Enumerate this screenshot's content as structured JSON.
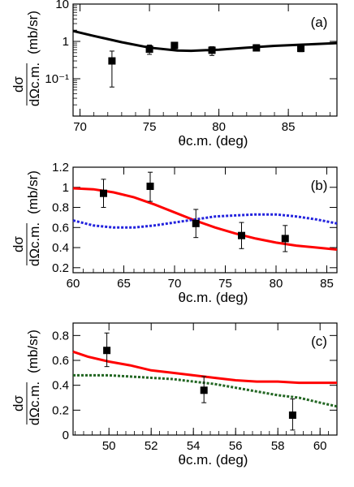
{
  "chart_data": [
    {
      "type": "scatter",
      "panel_label": "(a)",
      "xlabel": "θc.m. (deg)",
      "ylabel_top": "dσ",
      "ylabel_bottom": "dΩc.m.",
      "ylabel_unit": "(mb/sr)",
      "x_ticks": [
        "70",
        "75",
        "80",
        "85"
      ],
      "y_ticks": [
        "10",
        "1",
        "10⁻¹"
      ],
      "xlim": [
        69.5,
        88.5
      ],
      "ylim": [
        0.01,
        10
      ],
      "y_scale": "log",
      "grid": false,
      "points": [
        {
          "x": 72.3,
          "y": 0.3,
          "err_lo": 0.06,
          "err_hi": 0.55
        },
        {
          "x": 75.0,
          "y": 0.62,
          "err_lo": 0.45,
          "err_hi": 0.8
        },
        {
          "x": 76.8,
          "y": 0.78,
          "err_lo": 0.66,
          "err_hi": 0.92
        },
        {
          "x": 79.5,
          "y": 0.58,
          "err_lo": 0.42,
          "err_hi": 0.72
        },
        {
          "x": 82.7,
          "y": 0.67,
          "err_lo": 0.56,
          "err_hi": 0.82
        },
        {
          "x": 85.9,
          "y": 0.65,
          "err_lo": 0.53,
          "err_hi": 0.78
        }
      ],
      "curves": [
        {
          "color": "#000000",
          "style": "solid",
          "x": [
            69.5,
            71,
            73,
            75,
            77,
            78,
            80,
            82,
            84,
            86,
            88.5
          ],
          "y": [
            1.9,
            1.4,
            0.95,
            0.68,
            0.57,
            0.56,
            0.6,
            0.68,
            0.76,
            0.82,
            0.9
          ]
        }
      ]
    },
    {
      "type": "scatter",
      "panel_label": "(b)",
      "xlabel": "θc.m. (deg)",
      "ylabel_top": "dσ",
      "ylabel_bottom": "dΩc.m.",
      "ylabel_unit": "(mb/sr)",
      "x_ticks": [
        "60",
        "65",
        "70",
        "75",
        "80",
        "85"
      ],
      "y_ticks": [
        "0.2",
        "0.4",
        "0.6",
        "0.8",
        "1",
        "1.2"
      ],
      "xlim": [
        60,
        86
      ],
      "ylim": [
        0.15,
        1.2
      ],
      "y_scale": "linear",
      "grid": false,
      "points": [
        {
          "x": 63.0,
          "y": 0.94,
          "err_lo": 0.8,
          "err_hi": 1.08
        },
        {
          "x": 67.6,
          "y": 1.01,
          "err_lo": 0.86,
          "err_hi": 1.15
        },
        {
          "x": 72.1,
          "y": 0.64,
          "err_lo": 0.5,
          "err_hi": 0.78
        },
        {
          "x": 76.6,
          "y": 0.52,
          "err_lo": 0.39,
          "err_hi": 0.65
        },
        {
          "x": 80.9,
          "y": 0.49,
          "err_lo": 0.36,
          "err_hi": 0.62
        }
      ],
      "curves": [
        {
          "color": "#ff0000",
          "style": "solid",
          "x": [
            60,
            62,
            64,
            66,
            68,
            70,
            72,
            74,
            76,
            78,
            80,
            82,
            84,
            86
          ],
          "y": [
            0.99,
            0.98,
            0.95,
            0.9,
            0.83,
            0.75,
            0.67,
            0.6,
            0.54,
            0.49,
            0.45,
            0.42,
            0.4,
            0.38
          ]
        },
        {
          "color": "#2222dd",
          "style": "dotted",
          "x": [
            60,
            62,
            64,
            66,
            68,
            70,
            72,
            74,
            76,
            78,
            80,
            82,
            84,
            86
          ],
          "y": [
            0.67,
            0.62,
            0.6,
            0.6,
            0.62,
            0.65,
            0.68,
            0.71,
            0.72,
            0.73,
            0.73,
            0.71,
            0.68,
            0.64
          ]
        }
      ]
    },
    {
      "type": "scatter",
      "panel_label": "(c)",
      "xlabel": "θc.m. (deg)",
      "ylabel_top": "dσ",
      "ylabel_bottom": "dΩc.m.",
      "ylabel_unit": "(mb/sr)",
      "x_ticks": [
        "50",
        "52",
        "54",
        "56",
        "58",
        "60"
      ],
      "y_ticks": [
        "0",
        "0.2",
        "0.4",
        "0.6",
        "0.8"
      ],
      "xlim": [
        48.3,
        60.8
      ],
      "ylim": [
        0,
        0.9
      ],
      "y_scale": "linear",
      "grid": false,
      "points": [
        {
          "x": 49.9,
          "y": 0.68,
          "err_lo": 0.55,
          "err_hi": 0.82
        },
        {
          "x": 54.5,
          "y": 0.36,
          "err_lo": 0.26,
          "err_hi": 0.47
        },
        {
          "x": 58.7,
          "y": 0.16,
          "err_lo": 0.04,
          "err_hi": 0.29
        }
      ],
      "curves": [
        {
          "color": "#ff0000",
          "style": "solid",
          "x": [
            48.3,
            49,
            50,
            51,
            52,
            53,
            54,
            55,
            56,
            57,
            58,
            59,
            60,
            60.8
          ],
          "y": [
            0.67,
            0.63,
            0.59,
            0.56,
            0.52,
            0.5,
            0.48,
            0.46,
            0.44,
            0.43,
            0.43,
            0.42,
            0.42,
            0.42
          ]
        },
        {
          "color": "#226622",
          "style": "dotted",
          "x": [
            48.3,
            49,
            50,
            51,
            52,
            53,
            54,
            55,
            56,
            57,
            58,
            59,
            60,
            60.8
          ],
          "y": [
            0.48,
            0.48,
            0.48,
            0.47,
            0.46,
            0.45,
            0.43,
            0.41,
            0.38,
            0.35,
            0.32,
            0.3,
            0.26,
            0.23
          ]
        }
      ]
    }
  ]
}
